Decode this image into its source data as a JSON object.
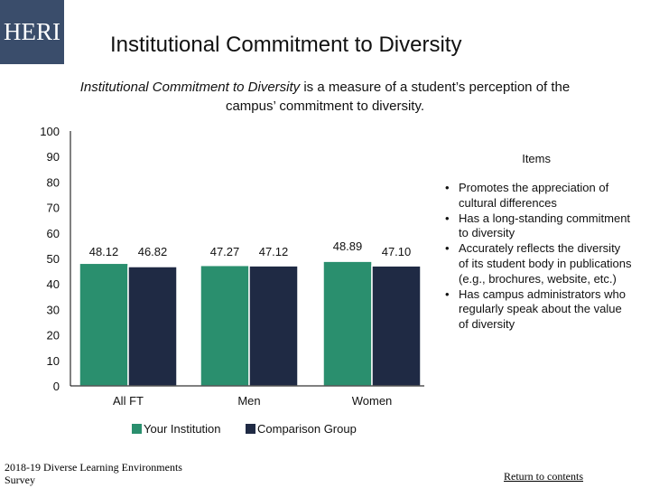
{
  "header": {
    "logo_text": "HERI",
    "title": "Institutional Commitment to Diversity"
  },
  "subtitle": {
    "italic_part": "Institutional Commitment to Diversity",
    "rest": " is a measure of a student’s perception of the campus’ commitment to diversity."
  },
  "items_panel": {
    "heading": "Items",
    "items": [
      "Promotes the appreciation of cultural differences",
      "Has a long-standing commitment to diversity",
      "Accurately reflects the diversity of its student body in publications (e.g., brochures, website, etc.)",
      "Has campus administrators who regularly speak about the value of diversity"
    ]
  },
  "footer": {
    "source": "2018-19 Diverse Learning Environments Survey",
    "link_label": "Return to contents"
  },
  "chart_data": {
    "type": "bar",
    "categories": [
      "All FT",
      "Men",
      "Women"
    ],
    "series": [
      {
        "name": "Your Institution",
        "values": [
          48.12,
          47.27,
          48.89
        ],
        "labels": [
          "48.12",
          "47.27",
          "48.89"
        ],
        "color": "#2a8f6e"
      },
      {
        "name": "Comparison Group",
        "values": [
          46.82,
          47.12,
          47.1
        ],
        "labels": [
          "46.82",
          "47.12",
          "47.10"
        ],
        "color": "#1f2a44"
      }
    ],
    "ylim": [
      0,
      100
    ],
    "yticks": [
      0,
      10,
      20,
      30,
      40,
      50,
      60,
      70,
      80,
      90,
      100
    ],
    "legend_position": "bottom",
    "grid": false
  }
}
